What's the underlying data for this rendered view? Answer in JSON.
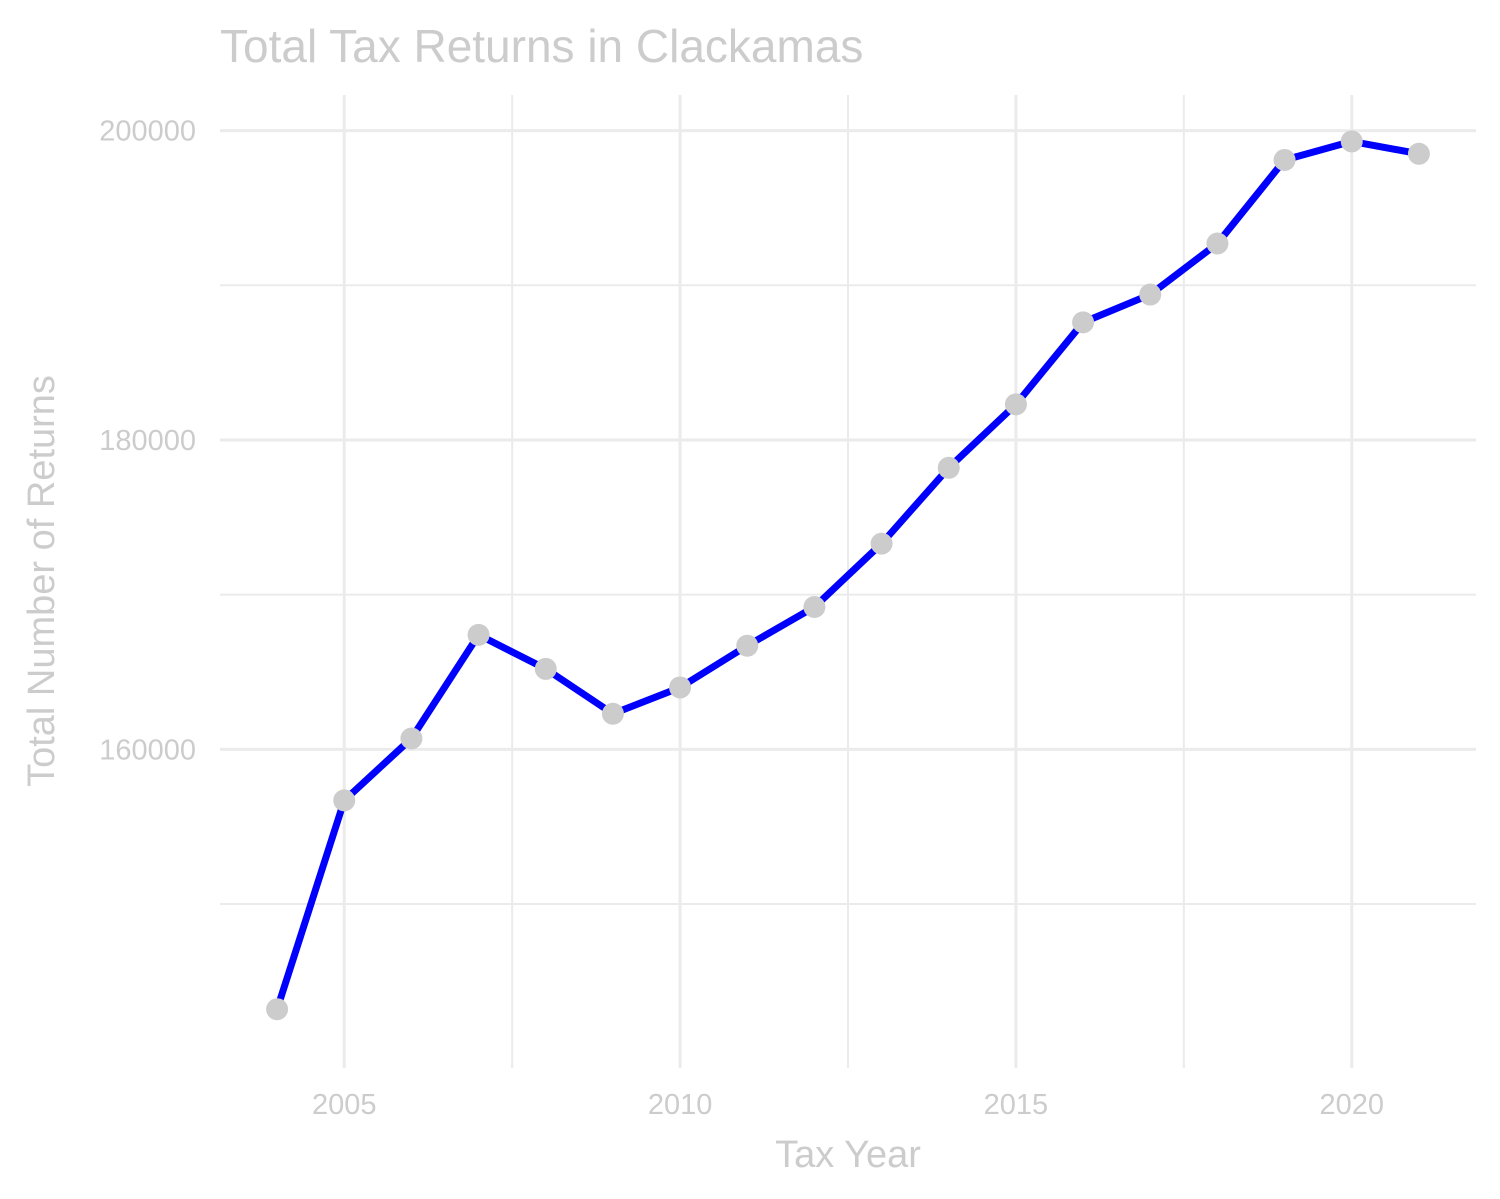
{
  "chart_data": {
    "type": "line",
    "title": "Total Tax Returns in Clackamas",
    "xlabel": "Tax Year",
    "ylabel": "Total Number of Returns",
    "x": [
      2004,
      2005,
      2006,
      2007,
      2008,
      2009,
      2010,
      2011,
      2012,
      2013,
      2014,
      2015,
      2016,
      2017,
      2018,
      2019,
      2020,
      2021
    ],
    "series": [
      {
        "values": [
          143200,
          156700,
          160700,
          167400,
          165200,
          162300,
          164000,
          166700,
          169200,
          173300,
          178200,
          182300,
          187600,
          189400,
          192700,
          198100,
          199300,
          198500
        ],
        "line_color": "#0000ff",
        "point_color": "#cccccc"
      }
    ],
    "xlim": [
      2003.15,
      2021.85
    ],
    "ylim": [
      139400,
      202300
    ],
    "x_ticks": [
      2005,
      2010,
      2015,
      2020
    ],
    "x_tick_labels": [
      "2005",
      "2010",
      "2015",
      "2020"
    ],
    "x_minor_ticks": [
      2007.5,
      2012.5,
      2017.5
    ],
    "y_ticks": [
      160000,
      180000,
      200000
    ],
    "y_tick_labels": [
      "160000",
      "180000",
      "200000"
    ],
    "y_minor_ticks": [
      150000,
      170000,
      190000
    ],
    "grid": true,
    "legend": "none"
  }
}
